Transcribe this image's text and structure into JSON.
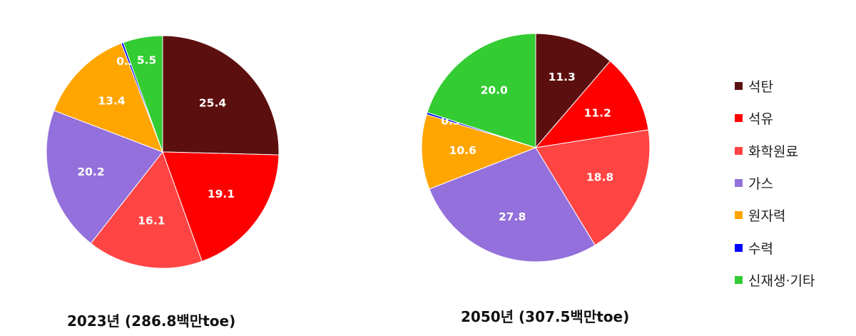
{
  "chart_data": [
    {
      "type": "pie",
      "title": "2023년 (286.8백만toe)",
      "categories": [
        "석탄",
        "석유",
        "화학원료",
        "가스",
        "원자력",
        "수력",
        "신재생·기타"
      ],
      "values": [
        25.4,
        19.1,
        16.1,
        20.2,
        13.4,
        0.3,
        5.5
      ],
      "labels": [
        "25.4",
        "19.1",
        "16.1",
        "20.2",
        "13.4",
        "0.3",
        "5.5"
      ]
    },
    {
      "type": "pie",
      "title": "2050년 (307.5백만toe)",
      "categories": [
        "석탄",
        "석유",
        "화학원료",
        "가스",
        "원자력",
        "수력",
        "신재생·기타"
      ],
      "values": [
        11.3,
        11.2,
        18.8,
        27.8,
        10.6,
        0.3,
        20.0
      ],
      "labels": [
        "11.3",
        "11.2",
        "18.8",
        "27.8",
        "10.6",
        "0.3",
        "20.0"
      ]
    }
  ],
  "legend": {
    "items": [
      {
        "label": "석탄",
        "color": "#5C0F0F"
      },
      {
        "label": "석유",
        "color": "#FF0000"
      },
      {
        "label": "화학원료",
        "color": "#FF4444"
      },
      {
        "label": "가스",
        "color": "#9370DB"
      },
      {
        "label": "원자력",
        "color": "#FFA500"
      },
      {
        "label": "수력",
        "color": "#0000FF"
      },
      {
        "label": "신재생·기타",
        "color": "#33CC33"
      }
    ]
  }
}
